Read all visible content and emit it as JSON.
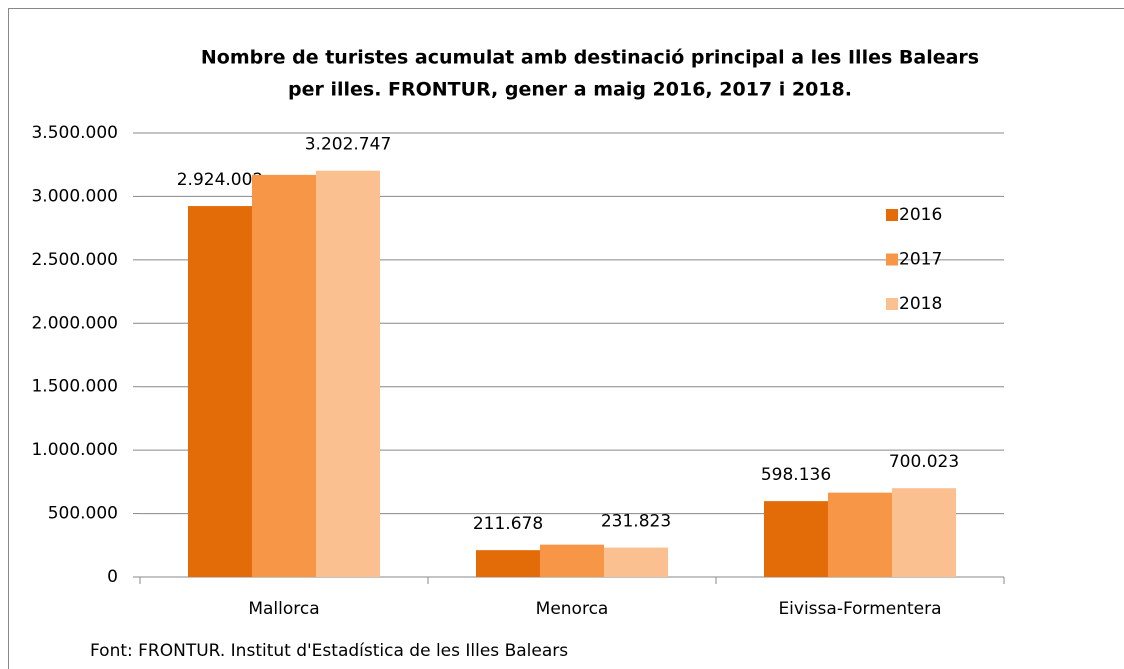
{
  "chart_data": {
    "type": "bar",
    "title": [
      "Nombre de turistes acumulat amb destinació principal a les Illes Balears",
      "per illes. FRONTUR,  gener a maig 2016, 2017 i 2018."
    ],
    "categories": [
      "Mallorca",
      "Menorca",
      "Eivissa-Formentera"
    ],
    "series": [
      {
        "name": "2016",
        "color": "#e36c09",
        "values": [
          2924002,
          211678,
          598136
        ],
        "value_labels": [
          "2.924.002",
          "211.678",
          "598.136"
        ]
      },
      {
        "name": "2017",
        "color": "#f79646",
        "values": [
          3170000,
          255000,
          665000
        ]
      },
      {
        "name": "2018",
        "color": "#fac090",
        "values": [
          3202747,
          231823,
          700023
        ],
        "value_labels": [
          "3.202.747",
          "231.823",
          "700.023"
        ]
      }
    ],
    "ylim": [
      0,
      3500000
    ],
    "yticks": [
      0,
      {
        "value": 500000,
        "label": "500.000"
      },
      {
        "value": 1000000,
        "label": "1.000.000"
      },
      {
        "value": 1500000,
        "label": "1.500.000"
      },
      {
        "value": 2000000,
        "label": "2.000.000"
      },
      {
        "value": 2500000,
        "label": "2.500.000"
      },
      {
        "value": 3000000,
        "label": "3.000.000"
      },
      {
        "value": 3500000,
        "label": "3.500.000"
      }
    ],
    "grid": true,
    "legend": "right",
    "source": "Font: FRONTUR. Institut d'Estadística de les Illes Balears"
  }
}
